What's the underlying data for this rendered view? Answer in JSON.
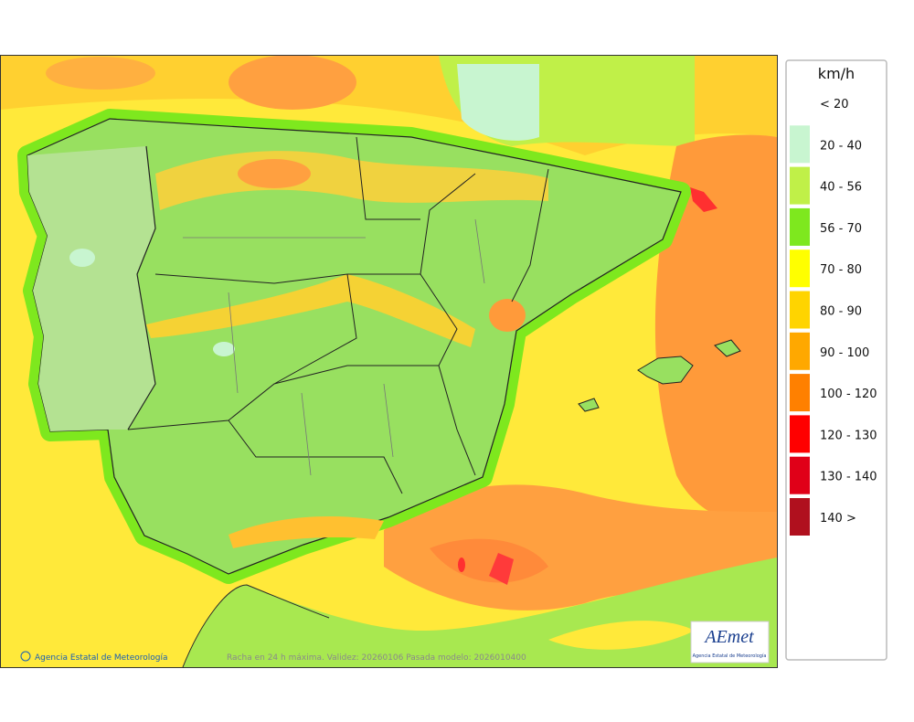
{
  "legend": {
    "title": "km/h",
    "items": [
      {
        "label": "< 20"
      },
      {
        "label": "20 - 40",
        "color": "#c8f5d0"
      },
      {
        "label": "40 - 56",
        "color": "#c0f048"
      },
      {
        "label": "56 - 70",
        "color": "#7ee81e"
      },
      {
        "label": "70 - 80",
        "color": "#ffff00"
      },
      {
        "label": "80 - 90",
        "color": "#ffd400"
      },
      {
        "label": "90 - 100",
        "color": "#ffa800"
      },
      {
        "label": "100 - 120",
        "color": "#ff8000"
      },
      {
        "label": "120 - 130",
        "color": "#ff0000"
      },
      {
        "label": "130 - 140",
        "color": "#e00018"
      },
      {
        "label": "140 >",
        "color": "#b0101e"
      }
    ]
  },
  "footer": {
    "credit": "Agencia Estatal de Meteorología",
    "caption": "Racha en 24 h máxima. Validez: 20260106 Pasada modelo: 2026010400"
  },
  "logo": {
    "name": "AEmet",
    "caption": "Agencia Estatal de Meteorología"
  }
}
